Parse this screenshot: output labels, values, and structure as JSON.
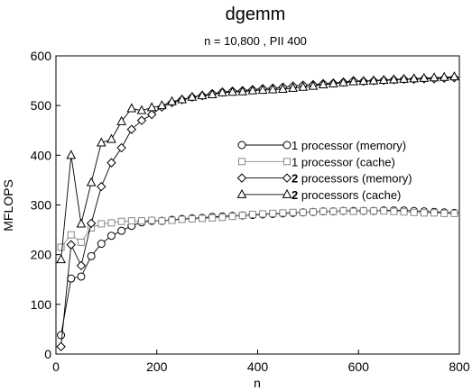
{
  "chart_data": {
    "type": "line",
    "title": "dgemm",
    "subtitle": "n = 10,800 , PII 400",
    "xlabel": "n",
    "ylabel": "MFLOPS",
    "xlim": [
      0,
      800
    ],
    "ylim": [
      0,
      600
    ],
    "xticks": [
      0,
      200,
      400,
      600,
      800
    ],
    "yticks": [
      0,
      100,
      200,
      300,
      400,
      500,
      600
    ],
    "grid": false,
    "legend_position": "right-middle",
    "series": [
      {
        "name": "1 processor (memory)",
        "name_prefix": "1",
        "name_suffix": "processor (memory)",
        "marker": "circle",
        "color": "#000000",
        "x": [
          10,
          30,
          50,
          70,
          90,
          110,
          130,
          150,
          170,
          190,
          210,
          230,
          250,
          270,
          290,
          310,
          330,
          350,
          370,
          390,
          410,
          430,
          450,
          470,
          490,
          510,
          530,
          550,
          570,
          590,
          610,
          630,
          650,
          670,
          690,
          710,
          730,
          750,
          770,
          790
        ],
        "values": [
          38,
          152,
          156,
          197,
          222,
          238,
          248,
          258,
          265,
          268,
          268,
          270,
          272,
          273,
          274,
          276,
          277,
          278,
          279,
          280,
          281,
          282,
          283,
          284,
          285,
          286,
          287,
          287,
          288,
          288,
          288,
          288,
          289,
          289,
          289,
          288,
          287,
          286,
          285,
          284
        ]
      },
      {
        "name": "1 processor (cache)",
        "name_prefix": "1",
        "name_suffix": "processor (cache)",
        "marker": "square",
        "color": "#888888",
        "x": [
          10,
          30,
          50,
          70,
          90,
          110,
          130,
          150,
          170,
          190,
          210,
          230,
          250,
          270,
          290,
          310,
          330,
          350,
          370,
          390,
          410,
          430,
          450,
          470,
          490,
          510,
          530,
          550,
          570,
          590,
          610,
          630,
          650,
          670,
          690,
          710,
          730,
          750,
          770,
          790
        ],
        "values": [
          215,
          240,
          225,
          254,
          262,
          264,
          267,
          268,
          268,
          269,
          268,
          269,
          271,
          272,
          273,
          274,
          275,
          277,
          279,
          281,
          282,
          283,
          284,
          285,
          285,
          286,
          287,
          287,
          288,
          287,
          288,
          288,
          288,
          287,
          286,
          285,
          284,
          284,
          283,
          283
        ]
      },
      {
        "name": "2 processors (memory)",
        "name_prefix": "2",
        "name_suffix": "processors (memory)",
        "marker": "diamond",
        "color": "#000000",
        "x": [
          10,
          30,
          50,
          70,
          90,
          110,
          130,
          150,
          170,
          190,
          210,
          230,
          250,
          270,
          290,
          310,
          330,
          350,
          370,
          390,
          410,
          430,
          450,
          470,
          490,
          510,
          530,
          550,
          570,
          590,
          610,
          630,
          650,
          670,
          690,
          710,
          730,
          750,
          770,
          790
        ],
        "values": [
          15,
          220,
          178,
          263,
          337,
          385,
          415,
          452,
          470,
          482,
          497,
          506,
          512,
          517,
          520,
          524,
          527,
          529,
          530,
          532,
          534,
          535,
          537,
          539,
          541,
          542,
          544,
          545,
          547,
          550,
          549,
          550,
          551,
          552,
          553,
          553,
          554,
          554,
          555,
          556
        ]
      },
      {
        "name": "2 processors (cache)",
        "name_prefix": "2",
        "name_suffix": "processors (cache)",
        "marker": "triangle",
        "color": "#000000",
        "x": [
          10,
          30,
          50,
          70,
          90,
          110,
          130,
          150,
          170,
          190,
          210,
          230,
          250,
          270,
          290,
          310,
          330,
          350,
          370,
          390,
          410,
          430,
          450,
          470,
          490,
          510,
          530,
          550,
          570,
          590,
          610,
          630,
          650,
          670,
          690,
          710,
          730,
          750,
          770,
          790
        ],
        "values": [
          190,
          400,
          262,
          345,
          425,
          432,
          468,
          494,
          490,
          496,
          500,
          508,
          512,
          517,
          520,
          522,
          526,
          527,
          528,
          530,
          531,
          532,
          533,
          535,
          537,
          539,
          542,
          544,
          546,
          548,
          549,
          550,
          551,
          552,
          553,
          554,
          555,
          556,
          557,
          558
        ]
      }
    ]
  }
}
